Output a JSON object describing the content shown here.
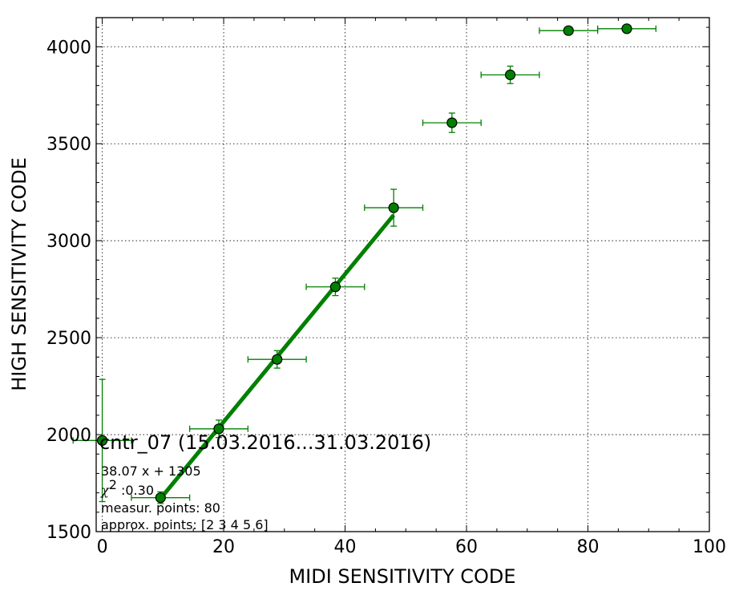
{
  "chart_data": {
    "type": "scatter",
    "xlabel": "MIDI SENSITIVITY CODE",
    "ylabel": "HIGH SENSITIVITY CODE",
    "xlim": [
      -1,
      100
    ],
    "ylim": [
      1500,
      4150
    ],
    "x_ticks": [
      0,
      20,
      40,
      60,
      80,
      100
    ],
    "y_ticks": [
      1500,
      2000,
      2500,
      3000,
      3500,
      4000
    ],
    "grid": true,
    "colors": {
      "series": "#008000",
      "marker_face": "#008000",
      "marker_edge": "#000000",
      "fit_line": "#008000"
    },
    "points": [
      {
        "x": 0.0,
        "y": 1970,
        "xerr": 4.8,
        "yerr": 315
      },
      {
        "x": 9.6,
        "y": 1675,
        "xerr": 4.8,
        "yerr": 30
      },
      {
        "x": 19.2,
        "y": 2030,
        "xerr": 4.8,
        "yerr": 45
      },
      {
        "x": 28.8,
        "y": 2388,
        "xerr": 4.8,
        "yerr": 45
      },
      {
        "x": 38.4,
        "y": 2762,
        "xerr": 4.8,
        "yerr": 45
      },
      {
        "x": 48.0,
        "y": 3170,
        "xerr": 4.8,
        "yerr": 95
      },
      {
        "x": 57.6,
        "y": 3608,
        "xerr": 4.8,
        "yerr": 50
      },
      {
        "x": 67.2,
        "y": 3855,
        "xerr": 4.8,
        "yerr": 45
      },
      {
        "x": 76.8,
        "y": 4083,
        "xerr": 4.8,
        "yerr": 10
      },
      {
        "x": 86.4,
        "y": 4093,
        "xerr": 4.8,
        "yerr": 10
      }
    ],
    "fit": {
      "slope": 38.07,
      "intercept": 1305,
      "x_from": 9.6,
      "x_to": 48.0
    },
    "annotations": {
      "title": "cntr_07 (15.03.2016...31.03.2016)",
      "equation": "38.07 x + 1305",
      "chi_symbol": "χ",
      "chi_exp": "2",
      "chi_value": " :0.30",
      "measur_points": "measur. points: 80",
      "approx_points": "approx. points: [2 3 4 5 6]"
    }
  }
}
